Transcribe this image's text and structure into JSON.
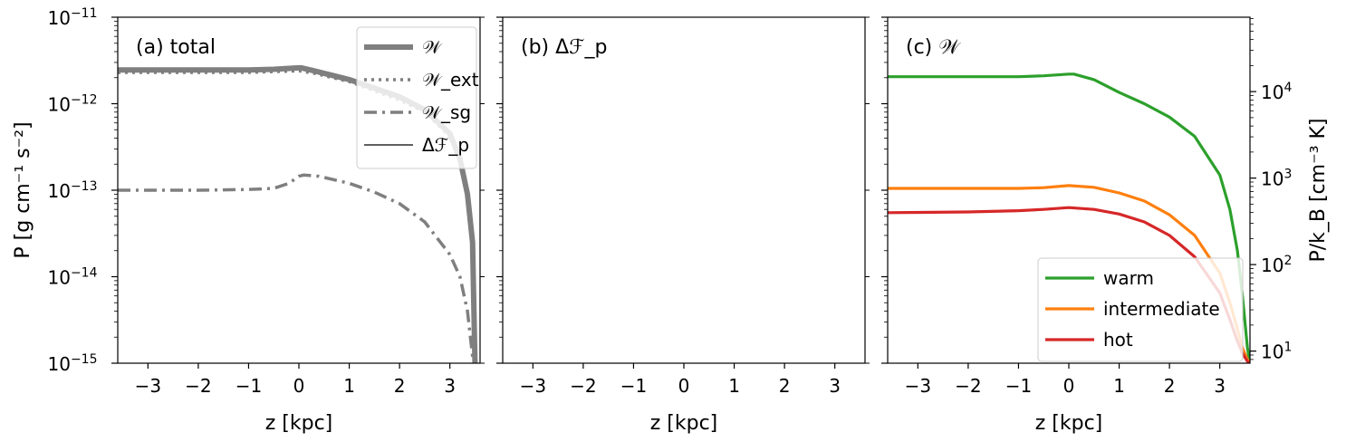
{
  "figure": {
    "shared_xlabel": "z [kpc]",
    "ylabel_left": "P [g cm⁻¹ s⁻²]",
    "ylabel_right": "P/k_B [cm⁻³ K]"
  },
  "chart_data": [
    {
      "type": "line",
      "panel_label": "(a) total",
      "xlabel": "z [kpc]",
      "ylabel": "P [g cm⁻¹ s⁻²]",
      "xlim": [
        -3.6,
        3.6
      ],
      "ylim": [
        1e-15,
        1e-11
      ],
      "yscale": "log",
      "xticks": [
        -3,
        -2,
        -1,
        0,
        1,
        2,
        3
      ],
      "ytick_exponents": [
        -15,
        -14,
        -13,
        -12,
        -11
      ],
      "legend": "top-right",
      "series": [
        {
          "name": "𝒲",
          "color": "#7f7f7f",
          "style": "solid-thick",
          "x": [
            -3.6,
            -2,
            -1,
            -0.5,
            0,
            0.05,
            0.3,
            1,
            2,
            2.5,
            3,
            3.2,
            3.35,
            3.45,
            3.5
          ],
          "y": [
            2.45e-12,
            2.45e-12,
            2.45e-12,
            2.5e-12,
            2.6e-12,
            2.6e-12,
            2.4e-12,
            1.9e-12,
            1.2e-12,
            8.5e-13,
            4.5e-13,
            2.3e-13,
            9e-14,
            2.5e-14,
            1e-15
          ]
        },
        {
          "name": "𝒲_ext",
          "color": "#7f7f7f",
          "style": "dotted",
          "x": [
            -3.6,
            -2,
            -1,
            -0.5,
            0,
            0.3,
            1,
            2,
            2.5,
            3,
            3.2,
            3.35,
            3.45,
            3.5
          ],
          "y": [
            2.3e-12,
            2.3e-12,
            2.3e-12,
            2.35e-12,
            2.4e-12,
            2.25e-12,
            1.8e-12,
            1.1e-12,
            8e-13,
            4.2e-13,
            2.1e-13,
            8e-14,
            2.2e-14,
            1e-15
          ]
        },
        {
          "name": "𝒲_sg",
          "color": "#7f7f7f",
          "style": "dashdot",
          "x": [
            -3.6,
            -2,
            -1,
            -0.5,
            -0.2,
            0,
            0.1,
            0.4,
            1,
            1.5,
            2,
            2.5,
            3,
            3.2,
            3.35,
            3.45,
            3.5
          ],
          "y": [
            1e-13,
            1e-13,
            1.02e-13,
            1.05e-13,
            1.2e-13,
            1.45e-13,
            1.5e-13,
            1.45e-13,
            1.2e-13,
            9.5e-14,
            7e-14,
            4.3e-14,
            1.8e-14,
            1e-14,
            4e-15,
            1.2e-15,
            1e-15
          ]
        },
        {
          "name": "Δℱ_p",
          "color": "#000000",
          "style": "thin",
          "x": [],
          "y": []
        }
      ]
    },
    {
      "type": "line",
      "panel_label": "(b) Δℱ_p",
      "xlabel": "z [kpc]",
      "xlim": [
        -3.6,
        3.6
      ],
      "ylim": [
        1e-15,
        1e-11
      ],
      "yscale": "log",
      "xticks": [
        -3,
        -2,
        -1,
        0,
        1,
        2,
        3
      ],
      "series": []
    },
    {
      "type": "line",
      "panel_label": "(c) 𝒲",
      "xlabel": "z [kpc]",
      "ylabel": "P/k_B [cm⁻³ K]",
      "xlim": [
        -3.6,
        3.6
      ],
      "ylim": [
        1e-15,
        1e-11
      ],
      "yscale": "log",
      "secondary_ticks": [
        10,
        100,
        1000,
        10000
      ],
      "xticks": [
        -3,
        -2,
        -1,
        0,
        1,
        2,
        3
      ],
      "legend": "bottom-right",
      "series": [
        {
          "name": "warm",
          "color": "#2ca02c",
          "x": [
            -3.6,
            -2,
            -1,
            -0.5,
            0,
            0.1,
            0.5,
            1,
            1.5,
            2,
            2.5,
            3,
            3.2,
            3.35,
            3.45,
            3.55,
            3.6
          ],
          "y": [
            2.05e-12,
            2.05e-12,
            2.05e-12,
            2.1e-12,
            2.2e-12,
            2.2e-12,
            1.9e-12,
            1.35e-12,
            1e-12,
            7e-13,
            4.2e-13,
            1.5e-13,
            6e-14,
            2e-14,
            6e-15,
            1.5e-15,
            1e-15
          ]
        },
        {
          "name": "intermediate",
          "color": "#ff7f0e",
          "x": [
            -3.6,
            -2,
            -1,
            -0.5,
            0,
            0.5,
            1,
            1.5,
            2,
            2.5,
            3,
            3.2,
            3.35,
            3.45,
            3.55,
            3.6
          ],
          "y": [
            1.05e-13,
            1.05e-13,
            1.05e-13,
            1.07e-13,
            1.13e-13,
            1.08e-13,
            9.3e-14,
            7.5e-14,
            5.2e-14,
            3e-14,
            1.1e-14,
            5e-15,
            2.5e-15,
            1.5e-15,
            1.1e-15,
            1e-15
          ]
        },
        {
          "name": "hot",
          "color": "#d62728",
          "x": [
            -3.6,
            -2,
            -1,
            -0.5,
            0,
            0.5,
            1,
            1.5,
            2,
            2.5,
            3,
            3.2,
            3.35,
            3.45,
            3.55,
            3.6
          ],
          "y": [
            5.5e-14,
            5.6e-14,
            5.8e-14,
            6e-14,
            6.3e-14,
            6e-14,
            5.3e-14,
            4.3e-14,
            3e-14,
            1.7e-14,
            6.5e-15,
            3.2e-15,
            1.8e-15,
            1.3e-15,
            1.05e-15,
            1e-15
          ]
        }
      ]
    }
  ]
}
